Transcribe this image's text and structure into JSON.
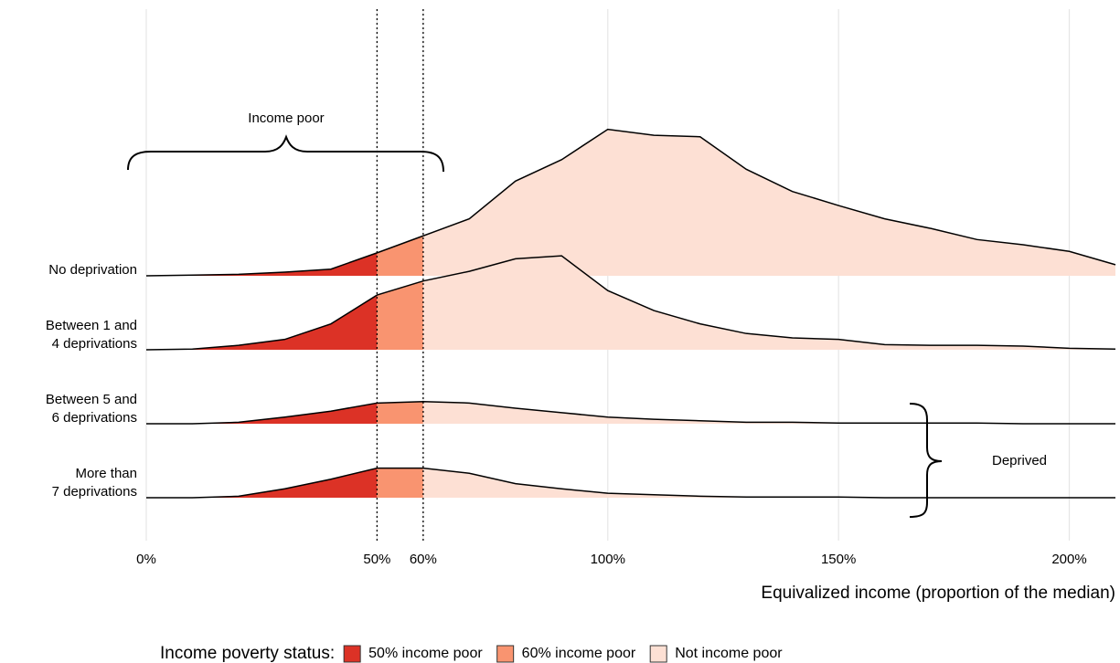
{
  "chart_data": {
    "type": "ridgeline",
    "x": [
      0,
      10,
      20,
      30,
      40,
      50,
      60,
      70,
      80,
      90,
      100,
      110,
      120,
      130,
      140,
      150,
      160,
      170,
      180,
      190,
      200,
      210
    ],
    "categories": [
      [
        "No deprivation"
      ],
      [
        "Between 1 and",
        "4 deprivations"
      ],
      [
        "Between 5 and",
        "6 deprivations"
      ],
      [
        "More than",
        "7 deprivations"
      ]
    ],
    "series": [
      {
        "values": [
          0,
          0.01,
          0.02,
          0.05,
          0.09,
          0.31,
          0.54,
          0.77,
          1.28,
          1.57,
          1.98,
          1.9,
          1.88,
          1.44,
          1.14,
          0.95,
          0.77,
          0.64,
          0.49,
          0.42,
          0.33,
          0.15
        ]
      },
      {
        "values": [
          0,
          0.01,
          0.06,
          0.14,
          0.35,
          0.74,
          0.93,
          1.06,
          1.23,
          1.27,
          0.8,
          0.53,
          0.35,
          0.22,
          0.16,
          0.14,
          0.07,
          0.06,
          0.06,
          0.05,
          0.02,
          0.01
        ]
      },
      {
        "values": [
          0,
          0,
          0.02,
          0.09,
          0.17,
          0.28,
          0.3,
          0.28,
          0.21,
          0.15,
          0.09,
          0.06,
          0.04,
          0.02,
          0.02,
          0.01,
          0.01,
          0.01,
          0.01,
          0,
          0,
          0
        ]
      },
      {
        "values": [
          0,
          0,
          0.02,
          0.12,
          0.25,
          0.4,
          0.4,
          0.33,
          0.19,
          0.12,
          0.06,
          0.04,
          0.02,
          0.01,
          0.01,
          0.01,
          0,
          0,
          0,
          0,
          0,
          0
        ]
      }
    ],
    "xlim": [
      0,
      210
    ],
    "xticks": [
      {
        "value": 0,
        "label": "0%"
      },
      {
        "value": 50,
        "label": "50%"
      },
      {
        "value": 60,
        "label": "60%"
      },
      {
        "value": 100,
        "label": "100%"
      },
      {
        "value": 150,
        "label": "150%"
      },
      {
        "value": 200,
        "label": "200%"
      }
    ],
    "grid": true,
    "thresholds": [
      50,
      60
    ],
    "fills": [
      {
        "name": "50% income poor",
        "color": "#dc3226"
      },
      {
        "name": "60% income poor",
        "color": "#f99470"
      },
      {
        "name": "Not income poor",
        "color": "#fde0d4"
      }
    ],
    "xlabel": "Equivalized income (proportion of the median)",
    "legend_title": "Income poverty status:",
    "annotations": [
      "Income poor",
      "Deprived"
    ]
  }
}
